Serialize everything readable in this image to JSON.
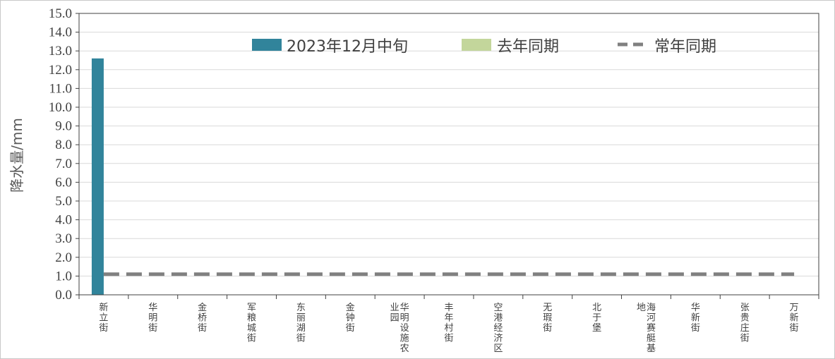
{
  "chart_data": {
    "type": "bar",
    "ylabel": "降水量/mm",
    "ylim": [
      0,
      15
    ],
    "ytick_step": 1,
    "yticks": [
      "0.0",
      "1.0",
      "2.0",
      "3.0",
      "4.0",
      "5.0",
      "6.0",
      "7.0",
      "8.0",
      "9.0",
      "10.0",
      "11.0",
      "12.0",
      "13.0",
      "14.0",
      "15.0"
    ],
    "grid": true,
    "legend_position": "top",
    "categories": [
      "新立街",
      "华明街",
      "金桥街",
      "军粮城街",
      "东丽湖街",
      "金钟街",
      "华明设施农业园",
      "丰年村街",
      "空港经济区",
      "无瑕街",
      "北于堡",
      "海河赛艇基地",
      "华新街",
      "张贵庄街",
      "万新街"
    ],
    "category_label_columns": [
      [
        "新立街"
      ],
      [
        "华明街"
      ],
      [
        "金桥街"
      ],
      [
        "军粮城街"
      ],
      [
        "东丽湖街"
      ],
      [
        "金钟街"
      ],
      [
        "业园",
        "华明设施农"
      ],
      [
        "丰年村街"
      ],
      [
        "空港经济区"
      ],
      [
        "无瑕街"
      ],
      [
        "北于堡"
      ],
      [
        "地",
        "海河赛艇基"
      ],
      [
        "华新街"
      ],
      [
        "张贵庄街"
      ],
      [
        "万新街"
      ]
    ],
    "series": [
      {
        "name": "2023年12月中旬",
        "type": "bar",
        "color": "#31849b",
        "values": [
          12.6,
          0,
          0,
          0,
          0,
          0,
          0,
          0,
          0,
          0,
          0,
          0,
          0,
          0,
          0
        ]
      },
      {
        "name": "去年同期",
        "type": "bar",
        "color": "#c3d69b",
        "values": [
          0,
          0,
          0,
          0,
          0,
          0,
          0,
          0,
          0,
          0,
          0,
          0,
          0,
          0,
          0
        ]
      },
      {
        "name": "常年同期",
        "type": "dashed-line",
        "color": "#808080",
        "values": [
          1.1,
          1.1,
          1.1,
          1.1,
          1.1,
          1.1,
          1.1,
          1.1,
          1.1,
          1.1,
          1.1,
          1.1,
          1.1,
          1.1,
          1.1
        ]
      }
    ]
  }
}
